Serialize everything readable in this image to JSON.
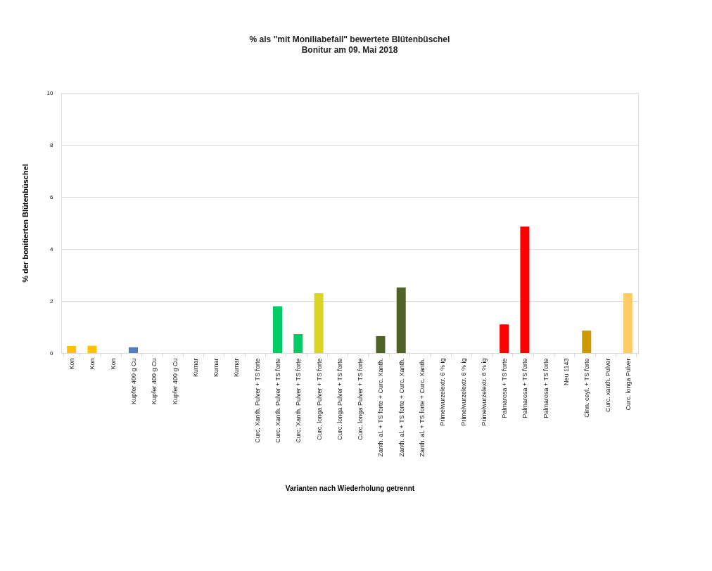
{
  "chart_data": {
    "type": "bar",
    "title": "% als \"mit Moniliabefall\"  bewertete Blütenbüschel",
    "subtitle": "Bonitur am 09. Mai 2018",
    "xlabel": "Varianten nach Wiederholung getrennt",
    "ylabel": "% der bonitierten Blütenbüschel",
    "categories": [
      "Kon",
      "Kon",
      "Kon",
      "Kupfer 400 g Cu",
      "Kupfer 400 g Cu",
      "Kupfer 400 g Cu",
      "Kumar",
      "Kumar",
      "Kumar",
      "Curc. Xanth. Pulver + TS forte",
      "Curc. Xanth. Pulver + TS forte",
      "Curc. Xanth. Pulver + TS forte",
      "Curc. longa Pulver + TS forte",
      "Curc. longa Pulver + TS forte",
      "Curc. longa Pulver + TS forte",
      "Zanth. al. + TS forte + Curc. Xanth.",
      "Zanth. al. + TS forte + Curc. Xanth.",
      "Zanth. al. + TS forte + Curc. Xanth.",
      "Primelwurzelextr. 6 % ig",
      "Primelwurzelextr. 6 % ig",
      "Primelwurzelextr. 6 % ig",
      "Palmarosa + TS forte",
      "Palmarosa + TS forte",
      "Palmarosa + TS forte",
      "Neu 1143",
      "Cinn. ceyl. + TS forte",
      "Curc. xanth. Pulver",
      "Curc. longa Pulver"
    ],
    "values": [
      0.27,
      0.28,
      0,
      0.22,
      0,
      0,
      0,
      0,
      0,
      0,
      1.8,
      0.73,
      2.3,
      0,
      0,
      0.65,
      2.52,
      0,
      0,
      0,
      0,
      1.1,
      4.86,
      0,
      0,
      0.86,
      0,
      2.3
    ],
    "colors": [
      "#ffc000",
      "#ffc000",
      "#ffc000",
      "#4f81bd",
      "#4f81bd",
      "#4f81bd",
      "#a5a5a5",
      "#a5a5a5",
      "#a5a5a5",
      "#00cc66",
      "#00cc66",
      "#00cc66",
      "#d9d426",
      "#d9d426",
      "#d9d426",
      "#4f6228",
      "#4f6228",
      "#4f6228",
      "#8064a2",
      "#8064a2",
      "#8064a2",
      "#ff0000",
      "#ff0000",
      "#ff0000",
      "#7f7f7f",
      "#cc9900",
      "#92d050",
      "#ffcc66"
    ],
    "ylim": [
      0,
      10
    ],
    "yticks": [
      0,
      2,
      4,
      6,
      8,
      10
    ],
    "grid": "y"
  }
}
